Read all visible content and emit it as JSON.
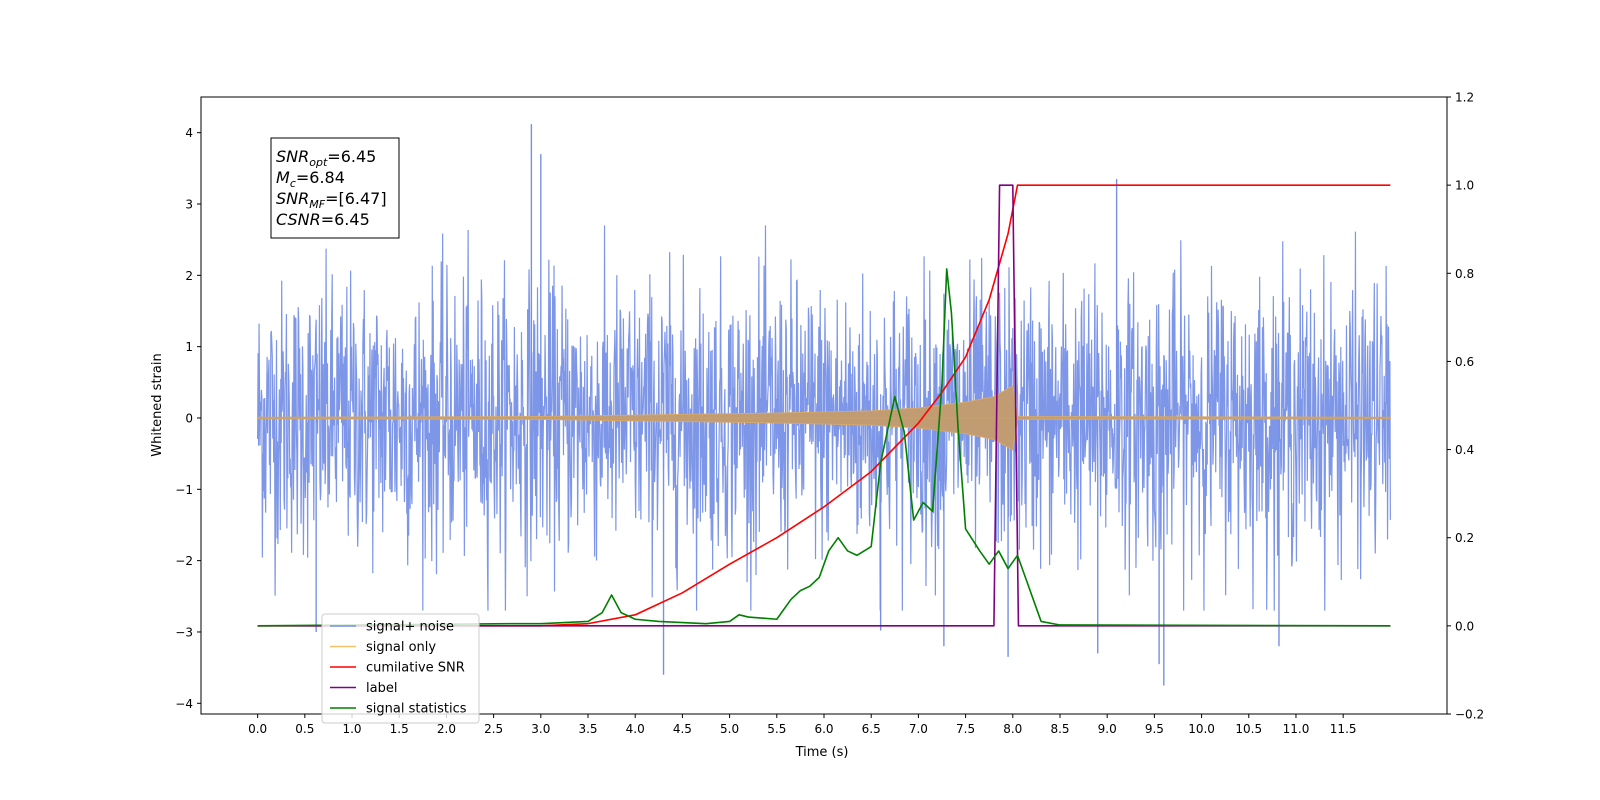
{
  "chart_data": {
    "type": "line",
    "title": "",
    "xlabel": "Time (s)",
    "ylabel": "Whitened strain",
    "xlim": [
      -0.6,
      12.6
    ],
    "ylim": [
      -4.15,
      4.5
    ],
    "y2lim": [
      -0.2,
      1.2
    ],
    "x_ticks": [
      "0.0",
      "0.5",
      "1.0",
      "1.5",
      "2.0",
      "2.5",
      "3.0",
      "3.5",
      "4.0",
      "4.5",
      "5.0",
      "5.5",
      "6.0",
      "6.5",
      "7.0",
      "7.5",
      "8.0",
      "8.5",
      "9.0",
      "9.5",
      "10.0",
      "10.5",
      "11.0",
      "11.5"
    ],
    "y_ticks": [
      "4",
      "3",
      "2",
      "1",
      "0",
      "−1",
      "−2",
      "−3",
      "−4"
    ],
    "y2_ticks": [
      "1.2",
      "1.0",
      "0.8",
      "0.6",
      "0.4",
      "0.2",
      "0.0",
      "−0.2"
    ],
    "grid": false,
    "legend_position": "lower-left",
    "annotation": {
      "lines": [
        {
          "base": "SNR",
          "sub": "opt",
          "value": "=6.45"
        },
        {
          "base": "M",
          "sub": "c",
          "value": "=6.84"
        },
        {
          "base": "SNR",
          "sub": "MF",
          "value": "=[6.47]"
        },
        {
          "base": "CSNR",
          "sub": "",
          "value": "=6.45"
        }
      ]
    },
    "series": [
      {
        "name": "signal+ noise",
        "color": "#7690e6",
        "axis": "left",
        "kind": "noise",
        "x_range": [
          0.0,
          12.0
        ],
        "noise_band": [
          -2.4,
          2.4
        ],
        "peaks": [
          {
            "x": 2.9,
            "y": 4.12
          },
          {
            "x": 3.0,
            "y": 3.7
          },
          {
            "x": 9.1,
            "y": 3.35
          },
          {
            "x": 4.3,
            "y": -3.6
          },
          {
            "x": 9.6,
            "y": -3.75
          },
          {
            "x": 9.55,
            "y": -3.45
          },
          {
            "x": 8.9,
            "y": -3.3
          },
          {
            "x": 10.82,
            "y": -3.2
          },
          {
            "x": 7.95,
            "y": -3.35
          },
          {
            "x": 6.6,
            "y": -2.98
          },
          {
            "x": 7.27,
            "y": -3.2
          },
          {
            "x": 0.62,
            "y": -3.0
          }
        ]
      },
      {
        "name": "signal only",
        "color": "#f5c26b",
        "axis": "left",
        "kind": "chirp",
        "envelope": [
          [
            0.0,
            0.01
          ],
          [
            3.0,
            0.02
          ],
          [
            4.5,
            0.05
          ],
          [
            5.5,
            0.07
          ],
          [
            6.5,
            0.1
          ],
          [
            7.0,
            0.14
          ],
          [
            7.5,
            0.22
          ],
          [
            7.8,
            0.3
          ],
          [
            8.0,
            0.45
          ],
          [
            8.05,
            0.02
          ],
          [
            12.0,
            0.01
          ]
        ]
      },
      {
        "name": "cumilative SNR",
        "color": "#ff0000",
        "axis": "right",
        "x": [
          0.0,
          3.0,
          3.5,
          4.0,
          4.5,
          5.0,
          5.5,
          6.0,
          6.5,
          7.0,
          7.25,
          7.5,
          7.75,
          7.95,
          8.05,
          12.0
        ],
        "y": [
          0.0,
          0.0,
          0.005,
          0.025,
          0.075,
          0.14,
          0.2,
          0.27,
          0.35,
          0.46,
          0.53,
          0.61,
          0.74,
          0.89,
          1.0,
          1.0
        ]
      },
      {
        "name": "label",
        "color": "#800080",
        "axis": "right",
        "x": [
          0.0,
          7.8,
          7.86,
          8.0,
          8.06,
          12.0
        ],
        "y": [
          0.0,
          0.0,
          1.0,
          1.0,
          0.0,
          0.0
        ]
      },
      {
        "name": "signal statistics",
        "color": "#008000",
        "axis": "right",
        "x": [
          0.0,
          2.75,
          3.0,
          3.5,
          3.65,
          3.75,
          3.85,
          4.0,
          4.25,
          4.75,
          5.0,
          5.1,
          5.2,
          5.5,
          5.65,
          5.75,
          5.85,
          5.95,
          6.05,
          6.15,
          6.25,
          6.35,
          6.5,
          6.6,
          6.7,
          6.75,
          6.85,
          6.95,
          7.05,
          7.15,
          7.25,
          7.3,
          7.35,
          7.42,
          7.5,
          7.65,
          7.75,
          7.85,
          7.95,
          8.05,
          8.15,
          8.3,
          8.5,
          12.0
        ],
        "y": [
          0.0,
          0.005,
          0.005,
          0.01,
          0.03,
          0.07,
          0.03,
          0.015,
          0.01,
          0.005,
          0.01,
          0.025,
          0.02,
          0.015,
          0.06,
          0.08,
          0.09,
          0.11,
          0.17,
          0.2,
          0.17,
          0.16,
          0.18,
          0.37,
          0.47,
          0.52,
          0.44,
          0.24,
          0.28,
          0.26,
          0.55,
          0.81,
          0.71,
          0.45,
          0.22,
          0.17,
          0.14,
          0.17,
          0.13,
          0.16,
          0.1,
          0.01,
          0.002,
          0.0
        ]
      }
    ]
  }
}
